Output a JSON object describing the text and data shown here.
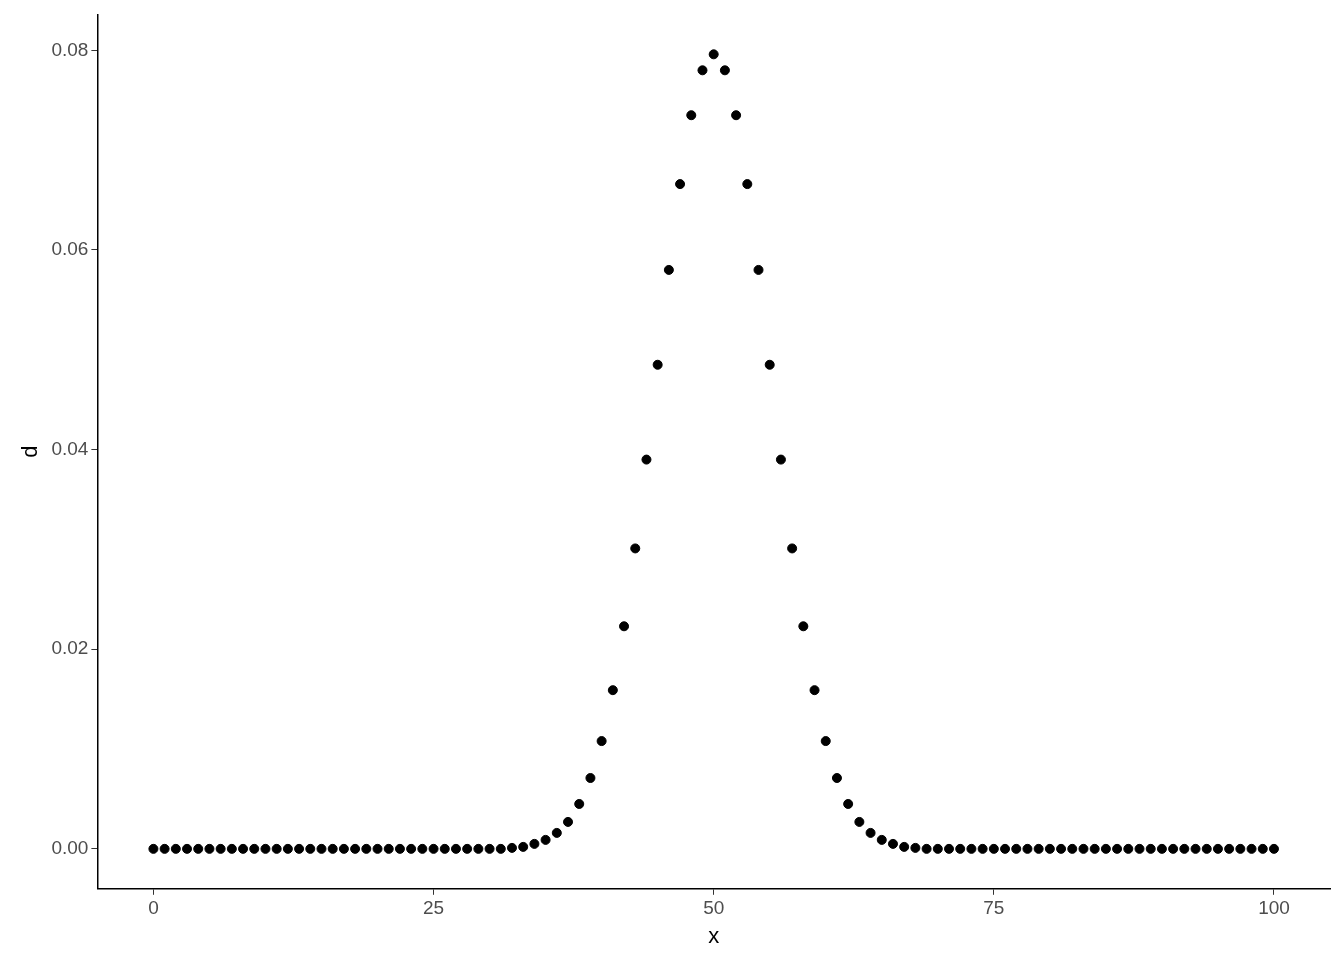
{
  "chart_data": {
    "type": "scatter",
    "xlabel": "x",
    "ylabel": "d",
    "x": [
      0,
      1,
      2,
      3,
      4,
      5,
      6,
      7,
      8,
      9,
      10,
      11,
      12,
      13,
      14,
      15,
      16,
      17,
      18,
      19,
      20,
      21,
      22,
      23,
      24,
      25,
      26,
      27,
      28,
      29,
      30,
      31,
      32,
      33,
      34,
      35,
      36,
      37,
      38,
      39,
      40,
      41,
      42,
      43,
      44,
      45,
      46,
      47,
      48,
      49,
      50,
      51,
      52,
      53,
      54,
      55,
      56,
      57,
      58,
      59,
      60,
      61,
      62,
      63,
      64,
      65,
      66,
      67,
      68,
      69,
      70,
      71,
      72,
      73,
      74,
      75,
      76,
      77,
      78,
      79,
      80,
      81,
      82,
      83,
      84,
      85,
      86,
      87,
      88,
      89,
      90,
      91,
      92,
      93,
      94,
      95,
      96,
      97,
      98,
      99,
      100
    ],
    "series": [
      {
        "color": "#000000",
        "values": [
          0,
          0,
          0,
          0,
          0,
          0,
          0,
          0,
          0,
          0,
          0,
          0,
          0,
          0,
          0,
          0,
          0,
          0,
          0,
          0,
          0,
          0,
          0,
          0,
          0,
          0,
          0,
          0,
          0,
          0,
          0,
          0,
          0.0001,
          0.0002,
          0.0005,
          0.0009,
          0.0016,
          0.0027,
          0.0045,
          0.0071,
          0.0108,
          0.0159,
          0.0223,
          0.0301,
          0.039,
          0.0485,
          0.058,
          0.0666,
          0.0735,
          0.078,
          0.0796,
          0.078,
          0.0735,
          0.0666,
          0.058,
          0.0485,
          0.039,
          0.0301,
          0.0223,
          0.0159,
          0.0108,
          0.0071,
          0.0045,
          0.0027,
          0.0016,
          0.0009,
          0.0005,
          0.0002,
          0.0001,
          0,
          0,
          0,
          0,
          0,
          0,
          0,
          0,
          0,
          0,
          0,
          0,
          0,
          0,
          0,
          0,
          0,
          0,
          0,
          0,
          0,
          0,
          0,
          0,
          0,
          0,
          0,
          0,
          0,
          0,
          0,
          0
        ]
      }
    ],
    "xlim": [
      -5,
      105
    ],
    "xticks": [
      0,
      25,
      50,
      75,
      100
    ],
    "ylim": [
      -0.004,
      0.0836
    ],
    "yticks": [
      {
        "value": 0,
        "label": "0.00"
      },
      {
        "value": 0.02,
        "label": "0.02"
      },
      {
        "value": 0.04,
        "label": "0.04"
      },
      {
        "value": 0.06,
        "label": "0.06"
      },
      {
        "value": 0.08,
        "label": "0.08"
      }
    ],
    "grid": false,
    "legend": false,
    "marker": "circle"
  }
}
